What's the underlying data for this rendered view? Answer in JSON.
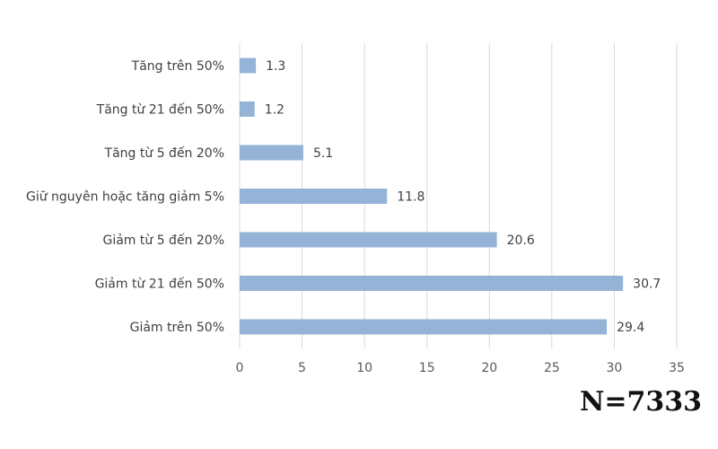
{
  "chart_data": {
    "type": "bar",
    "orientation": "horizontal",
    "categories": [
      "Tăng trên 50%",
      "Tăng từ 21 đến 50%",
      "Tăng từ 5 đến 20%",
      "Giữ nguyên hoặc tăng giảm 5%",
      "Giảm từ 5 đến 20%",
      "Giảm từ 21 đến 50%",
      "Giảm trên 50%"
    ],
    "values": [
      1.3,
      1.2,
      5.1,
      11.8,
      20.6,
      30.7,
      29.4
    ],
    "value_labels": [
      "1.3",
      "1.2",
      "5.1",
      "11.8",
      "20.6",
      "30.7",
      "29.4"
    ],
    "xlim": [
      0,
      35
    ],
    "x_ticks": [
      "0",
      "5",
      "10",
      "15",
      "20",
      "25",
      "30",
      "35"
    ],
    "grid": true,
    "bar_color": "#95B3D7",
    "title": "",
    "xlabel": "",
    "ylabel": ""
  },
  "sample_size_label": "N=7333"
}
